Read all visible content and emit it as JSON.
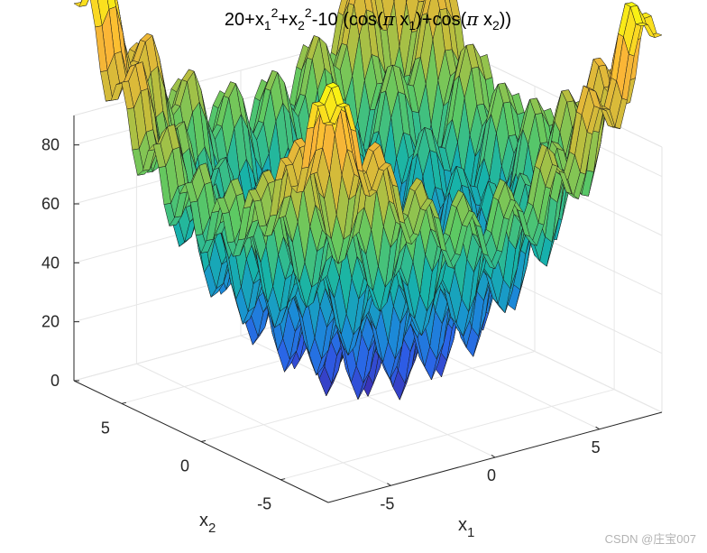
{
  "chart_data": {
    "type": "surface",
    "title": {
      "base": "20+x",
      "p1_sub": "1",
      "p1_sup": "2",
      "p2": "+x",
      "p2_sub": "2",
      "p2_sup": "2",
      "p3": "-10 (cos(",
      "pi1": "π",
      "p4": " x",
      "p4_sub": "1",
      "p5": ")+cos(",
      "pi2": "π",
      "p6": " x",
      "p6_sub": "2",
      "p7": "))"
    },
    "function": "20 + x1^2 + x2^2 - 10*(cos(pi*x1) + cos(pi*x2))",
    "xlabel": {
      "base": "x",
      "sub": "1"
    },
    "ylabel": {
      "base": "x",
      "sub": "2"
    },
    "x_range": [
      -8,
      8
    ],
    "y_range": [
      -8,
      8
    ],
    "z_range": [
      0,
      90
    ],
    "x_ticks": [
      -5,
      0,
      5
    ],
    "y_ticks": [
      -5,
      0,
      5
    ],
    "z_ticks": [
      0,
      20,
      40,
      60,
      80
    ],
    "x_tick_labels": [
      "-5",
      "0",
      "5"
    ],
    "y_tick_labels": [
      "-5",
      "0",
      "5"
    ],
    "z_tick_labels": [
      "0",
      "20",
      "40",
      "60",
      "80"
    ],
    "grid_points": 49,
    "colormap": "parula",
    "colormap_stops": [
      "#3e26a8",
      "#2c5fe8",
      "#1a8ed6",
      "#17b3a9",
      "#5ec962",
      "#c3bd3b",
      "#fbb537",
      "#f9fb0e"
    ],
    "grid": true,
    "view": "default 3-D (az -37.5, el 30)"
  },
  "watermark": "CSDN @庄宝007"
}
